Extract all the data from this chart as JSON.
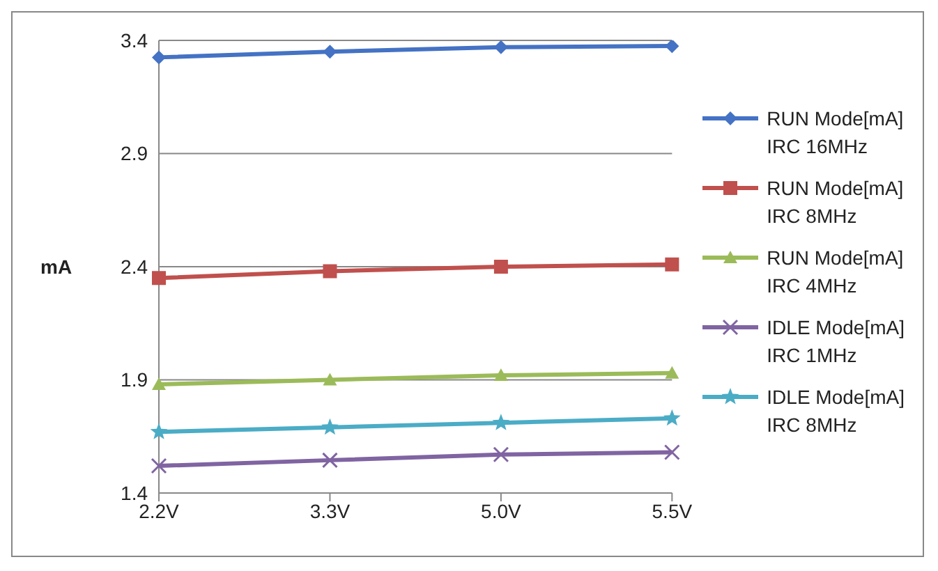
{
  "chart_data": {
    "type": "line",
    "ylabel": "mA",
    "categories": [
      "2.2V",
      "3.3V",
      "5.0V",
      "5.5V"
    ],
    "series": [
      {
        "name": "RUN Mode[mA]\nIRC 16MHz",
        "color": "#4472c4",
        "marker": "diamond",
        "values": [
          3.325,
          3.35,
          3.37,
          3.375
        ]
      },
      {
        "name": "RUN Mode[mA]\nIRC 8MHz",
        "color": "#c0504d",
        "marker": "square",
        "values": [
          2.35,
          2.38,
          2.4,
          2.41
        ]
      },
      {
        "name": "RUN Mode[mA]\nIRC 4MHz",
        "color": "#9bbb59",
        "marker": "triangle",
        "values": [
          1.88,
          1.9,
          1.92,
          1.93
        ]
      },
      {
        "name": "IDLE Mode[mA]\nIRC 1MHz",
        "color": "#8064a2",
        "marker": "cross",
        "values": [
          1.52,
          1.545,
          1.57,
          1.58
        ]
      },
      {
        "name": "IDLE Mode[mA]\nIRC 8MHz",
        "color": "#4bacc6",
        "marker": "star",
        "values": [
          1.67,
          1.69,
          1.71,
          1.73
        ]
      }
    ],
    "ylim": [
      1.4,
      3.4
    ],
    "yticks": [
      1.4,
      1.9,
      2.4,
      2.9,
      3.4
    ],
    "grid": "y",
    "legend": "right"
  }
}
